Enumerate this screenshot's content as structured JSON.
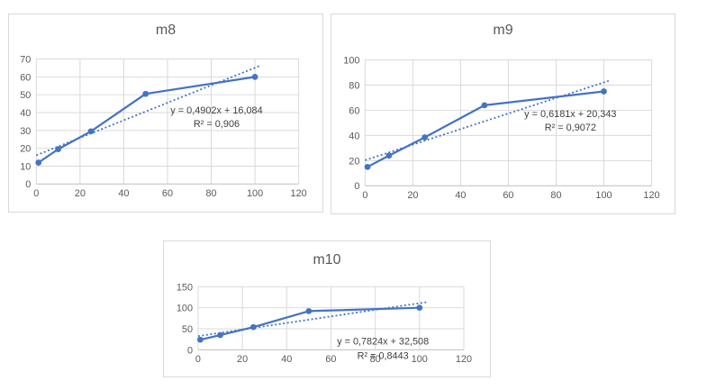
{
  "colors": {
    "series": "#4472C4",
    "trendline": "#4472C4",
    "gridline": "#D9D9D9",
    "axis_line": "#BFBFBF",
    "chart_border": "#D9D9D9",
    "tick_text": "#595959",
    "title_text": "#595959",
    "equation_text": "#404040",
    "background": "#FFFFFF"
  },
  "chart_data": [
    {
      "type": "line",
      "title": "m8",
      "x": [
        1,
        10,
        25,
        50,
        100
      ],
      "y": [
        12,
        19.5,
        29.5,
        50.5,
        60
      ],
      "xlim": [
        0,
        120
      ],
      "ylim": [
        0,
        70
      ],
      "xticks": [
        0,
        20,
        40,
        60,
        80,
        100,
        120
      ],
      "yticks": [
        0,
        10,
        20,
        30,
        40,
        50,
        60,
        70
      ],
      "grid": true,
      "legend": false,
      "marker": "circle",
      "trendline": {
        "type": "linear",
        "slope": 0.4902,
        "intercept": 16.084,
        "x_range": [
          0,
          102
        ],
        "style": "dotted",
        "equation_label": "y = 0,4902x + 16,084",
        "r2_label": "R² = 0,906"
      }
    },
    {
      "type": "line",
      "title": "m9",
      "x": [
        1,
        10,
        25,
        50,
        100
      ],
      "y": [
        15,
        24,
        38.5,
        64,
        75
      ],
      "xlim": [
        0,
        120
      ],
      "ylim": [
        0,
        100
      ],
      "xticks": [
        0,
        20,
        40,
        60,
        80,
        100,
        120
      ],
      "yticks": [
        0,
        20,
        40,
        60,
        80,
        100
      ],
      "grid": true,
      "legend": false,
      "marker": "circle",
      "trendline": {
        "type": "linear",
        "slope": 0.6181,
        "intercept": 20.343,
        "x_range": [
          0,
          102
        ],
        "style": "dotted",
        "equation_label": "y = 0,6181x + 20,343",
        "r2_label": "R² = 0,9072"
      }
    },
    {
      "type": "line",
      "title": "m10",
      "x": [
        1,
        10,
        25,
        50,
        100
      ],
      "y": [
        24,
        35,
        54,
        92,
        100
      ],
      "xlim": [
        0,
        120
      ],
      "ylim": [
        0,
        150
      ],
      "xticks": [
        0,
        20,
        40,
        60,
        80,
        100,
        120
      ],
      "yticks": [
        0,
        50,
        100,
        150
      ],
      "grid": true,
      "legend": false,
      "marker": "circle",
      "trendline": {
        "type": "linear",
        "slope": 0.7824,
        "intercept": 32.508,
        "x_range": [
          0,
          103
        ],
        "style": "dotted",
        "equation_label": "y = 0,7824x + 32,508",
        "r2_label": "R² = 0,8443"
      }
    }
  ]
}
